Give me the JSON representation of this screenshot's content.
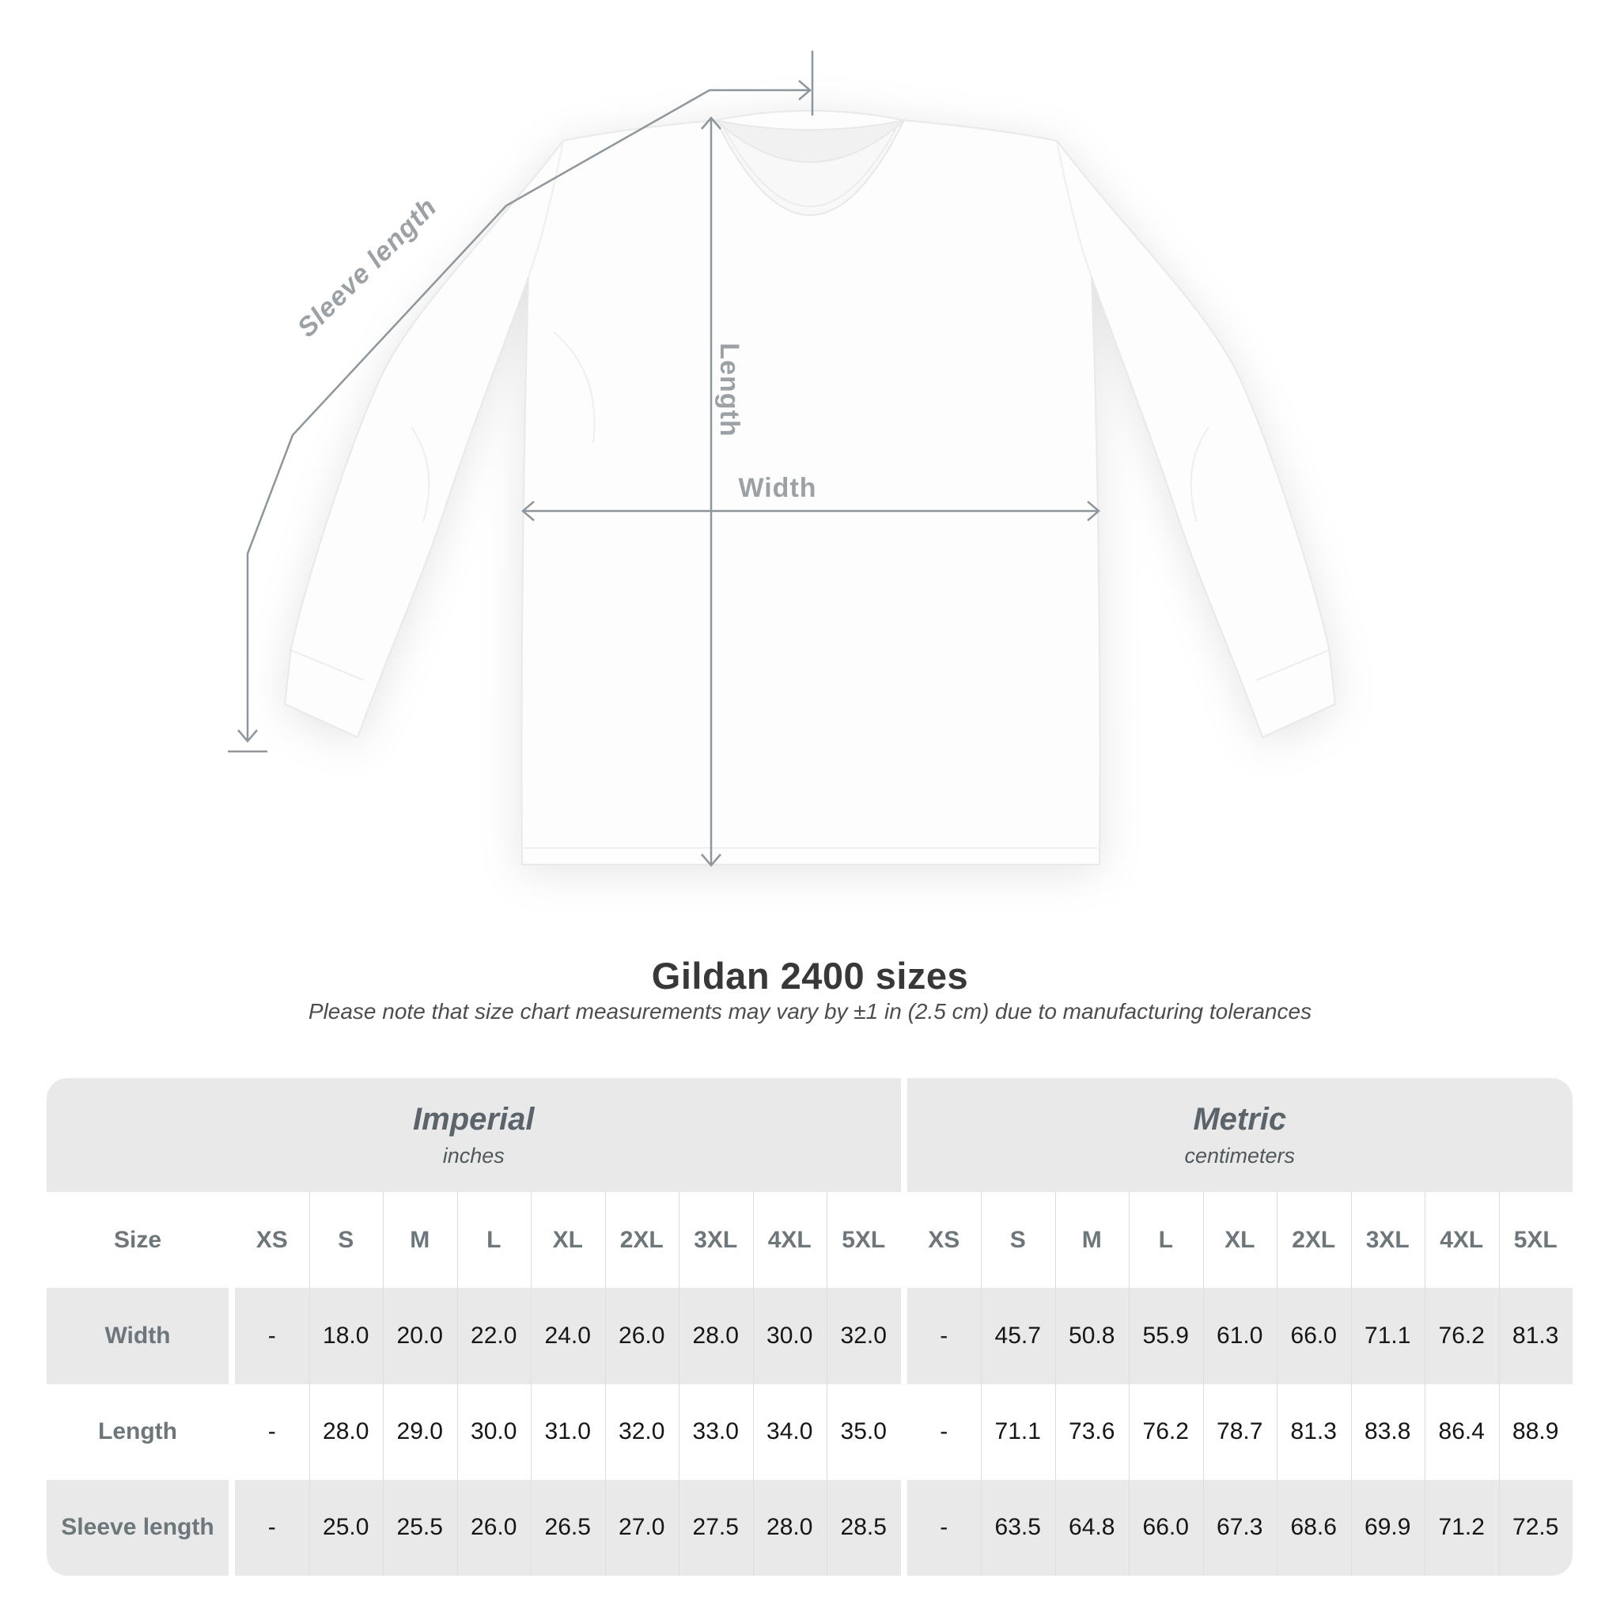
{
  "diagram": {
    "labels": {
      "sleeve_length": "Sleeve length",
      "length": "Length",
      "width": "Width"
    },
    "line_color": "#8f969b",
    "label_color": "#9ba1a5"
  },
  "title": "Gildan 2400 sizes",
  "subtitle": "Please note that size chart measurements may vary by ±1 in (2.5 cm) due to manufacturing tolerances",
  "table": {
    "groups": [
      {
        "name": "Imperial",
        "unit": "inches"
      },
      {
        "name": "Metric",
        "unit": "centimeters"
      }
    ],
    "size_header": "Size",
    "sizes": [
      "XS",
      "S",
      "M",
      "L",
      "XL",
      "2XL",
      "3XL",
      "4XL",
      "5XL"
    ],
    "rows": [
      {
        "label": "Width",
        "imperial": [
          "-",
          "18.0",
          "20.0",
          "22.0",
          "24.0",
          "26.0",
          "28.0",
          "30.0",
          "32.0"
        ],
        "metric": [
          "-",
          "45.7",
          "50.8",
          "55.9",
          "61.0",
          "66.0",
          "71.1",
          "76.2",
          "81.3"
        ]
      },
      {
        "label": "Length",
        "imperial": [
          "-",
          "28.0",
          "29.0",
          "30.0",
          "31.0",
          "32.0",
          "33.0",
          "34.0",
          "35.0"
        ],
        "metric": [
          "-",
          "71.1",
          "73.6",
          "76.2",
          "78.7",
          "81.3",
          "83.8",
          "86.4",
          "88.9"
        ]
      },
      {
        "label": "Sleeve length",
        "imperial": [
          "-",
          "25.0",
          "25.5",
          "26.0",
          "26.5",
          "27.0",
          "27.5",
          "28.0",
          "28.5"
        ],
        "metric": [
          "-",
          "63.5",
          "64.8",
          "66.0",
          "67.3",
          "68.6",
          "69.9",
          "71.2",
          "72.5"
        ]
      }
    ]
  },
  "chart_data": {
    "type": "table",
    "title": "Gildan 2400 sizes",
    "note": "Please note that size chart measurements may vary by ±1 in (2.5 cm) due to manufacturing tolerances",
    "column_groups": [
      "Imperial (inches)",
      "Metric (centimeters)"
    ],
    "columns": [
      "XS",
      "S",
      "M",
      "L",
      "XL",
      "2XL",
      "3XL",
      "4XL",
      "5XL"
    ],
    "rows": [
      {
        "measure": "Width",
        "imperial_in": [
          null,
          18.0,
          20.0,
          22.0,
          24.0,
          26.0,
          28.0,
          30.0,
          32.0
        ],
        "metric_cm": [
          null,
          45.7,
          50.8,
          55.9,
          61.0,
          66.0,
          71.1,
          76.2,
          81.3
        ]
      },
      {
        "measure": "Length",
        "imperial_in": [
          null,
          28.0,
          29.0,
          30.0,
          31.0,
          32.0,
          33.0,
          34.0,
          35.0
        ],
        "metric_cm": [
          null,
          71.1,
          73.6,
          76.2,
          78.7,
          81.3,
          83.8,
          86.4,
          88.9
        ]
      },
      {
        "measure": "Sleeve length",
        "imperial_in": [
          null,
          25.0,
          25.5,
          26.0,
          26.5,
          27.0,
          27.5,
          28.0,
          28.5
        ],
        "metric_cm": [
          null,
          63.5,
          64.8,
          66.0,
          67.3,
          68.6,
          69.9,
          71.2,
          72.5
        ]
      }
    ]
  }
}
